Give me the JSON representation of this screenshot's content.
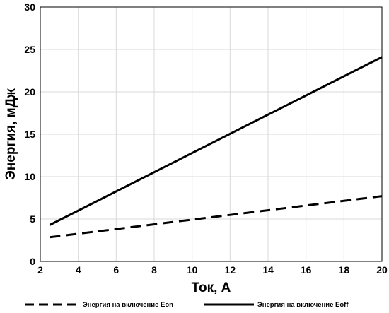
{
  "chart_data": {
    "type": "line",
    "title": "",
    "xlabel": "Ток, А",
    "ylabel": "Энергия, мДж",
    "xlim": [
      2,
      20
    ],
    "ylim": [
      0,
      30
    ],
    "xticks": [
      2,
      4,
      6,
      8,
      10,
      12,
      14,
      16,
      18,
      20
    ],
    "yticks": [
      0,
      5,
      10,
      15,
      20,
      25,
      30
    ],
    "grid": true,
    "legend_position": "bottom",
    "series": [
      {
        "name": "Энергия на включение Eon",
        "style": "dashed",
        "color": "#000000",
        "x": [
          2.5,
          20
        ],
        "y": [
          2.85,
          7.7
        ]
      },
      {
        "name": "Энергия на включение Eoff",
        "style": "solid",
        "color": "#000000",
        "x": [
          2.5,
          20
        ],
        "y": [
          4.3,
          24.1
        ]
      }
    ]
  }
}
